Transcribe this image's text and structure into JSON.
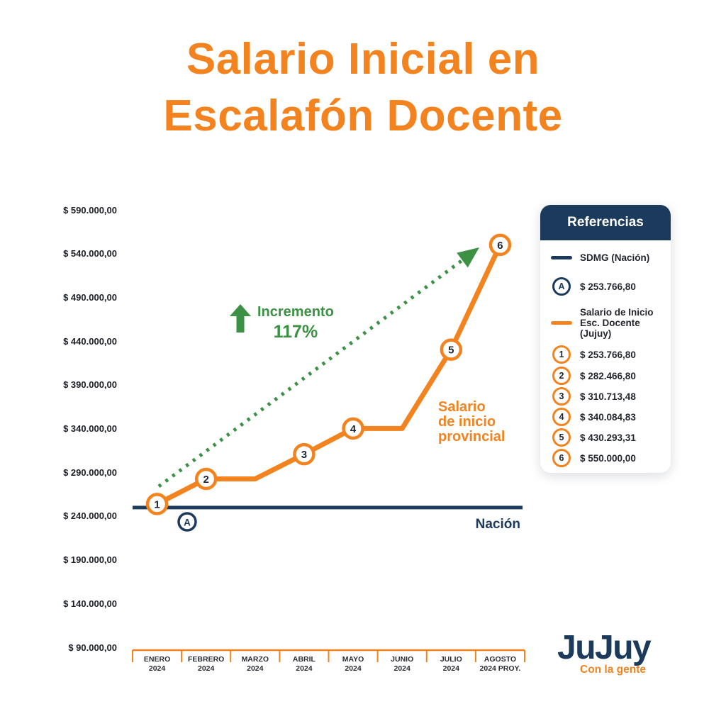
{
  "title": {
    "text": "Salario Inicial en\nEscalafón Docente"
  },
  "colors": {
    "orange": "#F2831E",
    "navy": "#1C3A5C",
    "green": "#3D9144",
    "white": "#FFFFFF"
  },
  "chart_data": {
    "type": "line",
    "title": "Salario Inicial en Escalafón Docente",
    "x_categories": [
      {
        "line1": "ENERO",
        "line2": "2024"
      },
      {
        "line1": "FEBRERO",
        "line2": "2024"
      },
      {
        "line1": "MARZO",
        "line2": "2024"
      },
      {
        "line1": "ABRIL",
        "line2": "2024"
      },
      {
        "line1": "MAYO",
        "line2": "2024"
      },
      {
        "line1": "JUNIO",
        "line2": "2024"
      },
      {
        "line1": "JULIO",
        "line2": "2024"
      },
      {
        "line1": "AGOSTO",
        "line2": "2024 PROY."
      }
    ],
    "ylim": [
      90000,
      590000
    ],
    "grid": false,
    "legend_position": "right",
    "yticks": [
      {
        "label": "$ 590.000,00",
        "value": 590000
      },
      {
        "label": "$ 540.000,00",
        "value": 540000
      },
      {
        "label": "$ 490.000,00",
        "value": 490000
      },
      {
        "label": "$ 440.000,00",
        "value": 440000
      },
      {
        "label": "$ 390.000,00",
        "value": 390000
      },
      {
        "label": "$ 340.000,00",
        "value": 340000
      },
      {
        "label": "$ 290.000,00",
        "value": 290000
      },
      {
        "label": "$ 240.000,00",
        "value": 240000
      },
      {
        "label": "$ 190.000,00",
        "value": 190000
      },
      {
        "label": "$ 140.000,00",
        "value": 140000
      },
      {
        "label": "$ 90.000,00",
        "value": 90000
      }
    ],
    "series": [
      {
        "name": "SDMG (Nación)",
        "type": "hline",
        "color": "#1C3A5C",
        "value": 253766.8,
        "marker_label": "A",
        "label": "Nación"
      },
      {
        "name": "Salario de Inicio Esc. Docente (Jujuy)",
        "type": "line",
        "color": "#F2831E",
        "monthly_values": [
          253766.8,
          282466.8,
          282466.8,
          310713.48,
          340084.83,
          340084.83,
          430293.31,
          550000.0
        ],
        "markers": [
          {
            "label": "1",
            "month": 0,
            "value": 253766.8
          },
          {
            "label": "2",
            "month": 1,
            "value": 282466.8
          },
          {
            "label": "3",
            "month": 3,
            "value": 310713.48
          },
          {
            "label": "4",
            "month": 4,
            "value": 340084.83
          },
          {
            "label": "5",
            "month": 6,
            "value": 430293.31
          },
          {
            "label": "6",
            "month": 7,
            "value": 550000.0
          }
        ],
        "label": "Salario\nde inicio\nprovincial"
      }
    ],
    "annotations": {
      "increment_label": "Incremento",
      "increment_pct": "117%"
    }
  },
  "legend": {
    "title": "Referencias",
    "items": [
      {
        "icon": "dash",
        "color": "navy",
        "text": "SDMG (Nación)"
      },
      {
        "icon": "circle",
        "color": "navy",
        "badge": "A",
        "text": "$ 253.766,80"
      },
      {
        "icon": "dash",
        "color": "orange",
        "text": "Salario de Inicio\nEsc. Docente (Jujuy)"
      },
      {
        "icon": "circle",
        "color": "orange",
        "badge": "1",
        "text": "$ 253.766,80"
      },
      {
        "icon": "circle",
        "color": "orange",
        "badge": "2",
        "text": "$ 282.466,80"
      },
      {
        "icon": "circle",
        "color": "orange",
        "badge": "3",
        "text": "$ 310.713,48"
      },
      {
        "icon": "circle",
        "color": "orange",
        "badge": "4",
        "text": "$ 340.084,83"
      },
      {
        "icon": "circle",
        "color": "orange",
        "badge": "5",
        "text": "$ 430.293,31"
      },
      {
        "icon": "circle",
        "color": "orange",
        "badge": "6",
        "text": "$ 550.000,00"
      }
    ]
  },
  "logo": {
    "title": "JuJuy",
    "subtitle": "Con la gente"
  }
}
